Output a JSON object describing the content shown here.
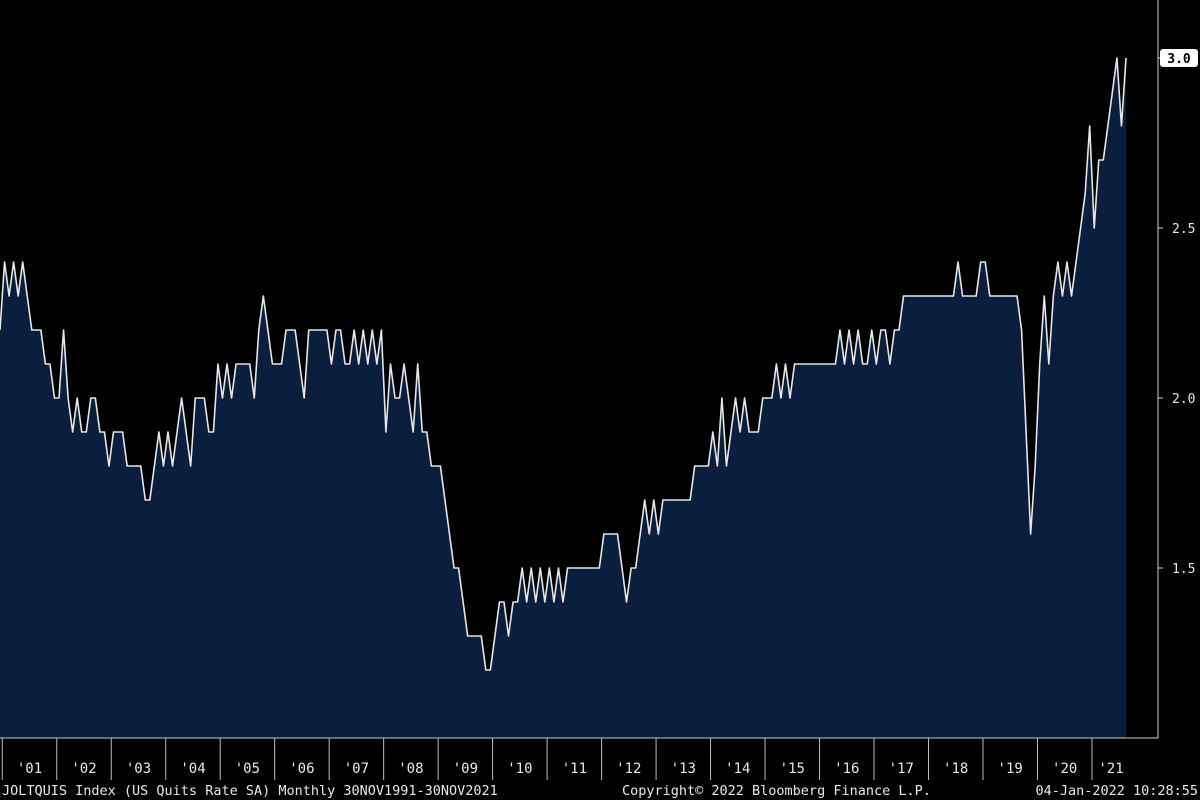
{
  "chart_data": {
    "type": "area",
    "title": "",
    "xlabel": "",
    "ylabel": "",
    "ylim": [
      1.0,
      3.1
    ],
    "x_start": "2000-12",
    "x_end": "2021-11",
    "grid": false,
    "x_tick_labels": [
      "'01",
      "'02",
      "'03",
      "'04",
      "'05",
      "'06",
      "'07",
      "'08",
      "'09",
      "'10",
      "'11",
      "'12",
      "'13",
      "'14",
      "'15",
      "'16",
      "'17",
      "'18",
      "'19",
      "'20",
      "'21"
    ],
    "y_ticks": [
      1.5,
      2.0,
      2.5,
      3.0
    ],
    "y_tick_labels": [
      "1.5",
      "2.0",
      "2.5",
      "3.0"
    ],
    "last_value_label": "3.0",
    "series": [
      {
        "values": [
          2.2,
          2.4,
          2.3,
          2.4,
          2.3,
          2.4,
          2.3,
          2.2,
          2.2,
          2.2,
          2.1,
          2.1,
          2.0,
          2.0,
          2.2,
          2.0,
          1.9,
          2.0,
          1.9,
          1.9,
          2.0,
          2.0,
          1.9,
          1.9,
          1.8,
          1.9,
          1.9,
          1.9,
          1.8,
          1.8,
          1.8,
          1.8,
          1.7,
          1.7,
          1.8,
          1.9,
          1.8,
          1.9,
          1.8,
          1.9,
          2.0,
          1.9,
          1.8,
          2.0,
          2.0,
          2.0,
          1.9,
          1.9,
          2.1,
          2.0,
          2.1,
          2.0,
          2.1,
          2.1,
          2.1,
          2.1,
          2.0,
          2.2,
          2.3,
          2.2,
          2.1,
          2.1,
          2.1,
          2.2,
          2.2,
          2.2,
          2.1,
          2.0,
          2.2,
          2.2,
          2.2,
          2.2,
          2.2,
          2.1,
          2.2,
          2.2,
          2.1,
          2.1,
          2.2,
          2.1,
          2.2,
          2.1,
          2.2,
          2.1,
          2.2,
          1.9,
          2.1,
          2.0,
          2.0,
          2.1,
          2.0,
          1.9,
          2.1,
          1.9,
          1.9,
          1.8,
          1.8,
          1.8,
          1.7,
          1.6,
          1.5,
          1.5,
          1.4,
          1.3,
          1.3,
          1.3,
          1.3,
          1.2,
          1.2,
          1.3,
          1.4,
          1.4,
          1.3,
          1.4,
          1.4,
          1.5,
          1.4,
          1.5,
          1.4,
          1.5,
          1.4,
          1.5,
          1.4,
          1.5,
          1.4,
          1.5,
          1.5,
          1.5,
          1.5,
          1.5,
          1.5,
          1.5,
          1.5,
          1.6,
          1.6,
          1.6,
          1.6,
          1.5,
          1.4,
          1.5,
          1.5,
          1.6,
          1.7,
          1.6,
          1.7,
          1.6,
          1.7,
          1.7,
          1.7,
          1.7,
          1.7,
          1.7,
          1.7,
          1.8,
          1.8,
          1.8,
          1.8,
          1.9,
          1.8,
          2.0,
          1.8,
          1.9,
          2.0,
          1.9,
          2.0,
          1.9,
          1.9,
          1.9,
          2.0,
          2.0,
          2.0,
          2.1,
          2.0,
          2.1,
          2.0,
          2.1,
          2.1,
          2.1,
          2.1,
          2.1,
          2.1,
          2.1,
          2.1,
          2.1,
          2.1,
          2.2,
          2.1,
          2.2,
          2.1,
          2.2,
          2.1,
          2.1,
          2.2,
          2.1,
          2.2,
          2.2,
          2.1,
          2.2,
          2.2,
          2.3,
          2.3,
          2.3,
          2.3,
          2.3,
          2.3,
          2.3,
          2.3,
          2.3,
          2.3,
          2.3,
          2.3,
          2.4,
          2.3,
          2.3,
          2.3,
          2.3,
          2.4,
          2.4,
          2.3,
          2.3,
          2.3,
          2.3,
          2.3,
          2.3,
          2.3,
          2.2,
          1.9,
          1.6,
          1.8,
          2.1,
          2.3,
          2.1,
          2.3,
          2.4,
          2.3,
          2.4,
          2.3,
          2.4,
          2.5,
          2.6,
          2.8,
          2.5,
          2.7,
          2.7,
          2.8,
          2.9,
          3.0,
          2.8,
          3.0
        ]
      }
    ]
  },
  "footer": {
    "index_info": "JOLTQUIS Index (US Quits Rate SA)  Monthly 30NOV1991-30NOV2021",
    "copyright": "Copyright© 2022 Bloomberg Finance L.P.",
    "timestamp": "04-Jan-2022 10:28:55"
  }
}
